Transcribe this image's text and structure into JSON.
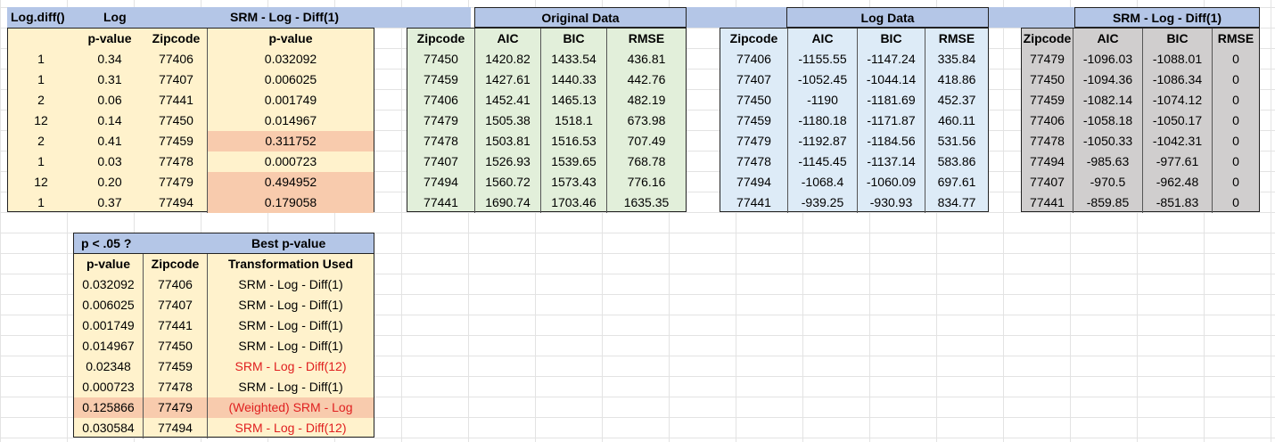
{
  "top_header": {
    "col1": "Log.diff()",
    "col2": "Log",
    "col3": "SRM - Log - Diff(1)",
    "original": "Original Data",
    "logdata": "Log Data",
    "srm": "SRM - Log - Diff(1)"
  },
  "block1": {
    "headers": [
      "",
      "p-value",
      "Zipcode",
      "p-value"
    ],
    "rows": [
      [
        "1",
        "0.34",
        "77406",
        "0.032092"
      ],
      [
        "1",
        "0.31",
        "77407",
        "0.006025"
      ],
      [
        "2",
        "0.06",
        "77441",
        "0.001749"
      ],
      [
        "12",
        "0.14",
        "77450",
        "0.014967"
      ],
      [
        "2",
        "0.41",
        "77459",
        "0.311752"
      ],
      [
        "1",
        "0.03",
        "77478",
        "0.000723"
      ],
      [
        "12",
        "0.20",
        "77479",
        "0.494952"
      ],
      [
        "1",
        "0.37",
        "77494",
        "0.179058"
      ]
    ],
    "highlight_color": "#f8cbad"
  },
  "original": {
    "headers": [
      "Zipcode",
      "AIC",
      "BIC",
      "RMSE"
    ],
    "rows": [
      [
        "77450",
        "1420.82",
        "1433.54",
        "436.81"
      ],
      [
        "77459",
        "1427.61",
        "1440.33",
        "442.76"
      ],
      [
        "77406",
        "1452.41",
        "1465.13",
        "482.19"
      ],
      [
        "77479",
        "1505.38",
        "1518.1",
        "673.98"
      ],
      [
        "77478",
        "1503.81",
        "1516.53",
        "707.49"
      ],
      [
        "77407",
        "1526.93",
        "1539.65",
        "768.78"
      ],
      [
        "77494",
        "1560.72",
        "1573.43",
        "776.16"
      ],
      [
        "77441",
        "1690.74",
        "1703.46",
        "1635.35"
      ]
    ]
  },
  "logdata": {
    "headers": [
      "Zipcode",
      "AIC",
      "BIC",
      "RMSE"
    ],
    "rows": [
      [
        "77406",
        "-1155.55",
        "-1147.24",
        "335.84"
      ],
      [
        "77407",
        "-1052.45",
        "-1044.14",
        "418.86"
      ],
      [
        "77450",
        "-1190",
        "-1181.69",
        "452.37"
      ],
      [
        "77459",
        "-1180.18",
        "-1171.87",
        "460.11"
      ],
      [
        "77479",
        "-1192.87",
        "-1184.56",
        "531.56"
      ],
      [
        "77478",
        "-1145.45",
        "-1137.14",
        "583.86"
      ],
      [
        "77494",
        "-1068.4",
        "-1060.09",
        "697.61"
      ],
      [
        "77441",
        "-939.25",
        "-930.93",
        "834.77"
      ]
    ]
  },
  "srm": {
    "headers": [
      "Zipcode",
      "AIC",
      "BIC",
      "RMSE"
    ],
    "rows": [
      [
        "77479",
        "-1096.03",
        "-1088.01",
        "0"
      ],
      [
        "77450",
        "-1094.36",
        "-1086.34",
        "0"
      ],
      [
        "77459",
        "-1082.14",
        "-1074.12",
        "0"
      ],
      [
        "77406",
        "-1058.18",
        "-1050.17",
        "0"
      ],
      [
        "77478",
        "-1050.33",
        "-1042.31",
        "0"
      ],
      [
        "77494",
        "-985.63",
        "-977.61",
        "0"
      ],
      [
        "77407",
        "-970.5",
        "-962.48",
        "0"
      ],
      [
        "77441",
        "-859.85",
        "-851.83",
        "0"
      ]
    ]
  },
  "best": {
    "title_left": "p < .05 ?",
    "title_right": "Best p-value",
    "headers": [
      "p-value",
      "Zipcode",
      "Transformation Used"
    ],
    "rows": [
      [
        "0.032092",
        "77406",
        "SRM - Log - Diff(1)"
      ],
      [
        "0.006025",
        "77407",
        "SRM - Log - Diff(1)"
      ],
      [
        "0.001749",
        "77441",
        "SRM - Log - Diff(1)"
      ],
      [
        "0.014967",
        "77450",
        "SRM - Log - Diff(1)"
      ],
      [
        "0.02348",
        "77459",
        "SRM - Log - Diff(12)"
      ],
      [
        "0.000723",
        "77478",
        "SRM - Log - Diff(1)"
      ],
      [
        "0.125866",
        "77479",
        "(Weighted) SRM - Log"
      ],
      [
        "0.030584",
        "77494",
        "SRM - Log - Diff(12)"
      ]
    ],
    "red_text_color": "#e02020"
  }
}
